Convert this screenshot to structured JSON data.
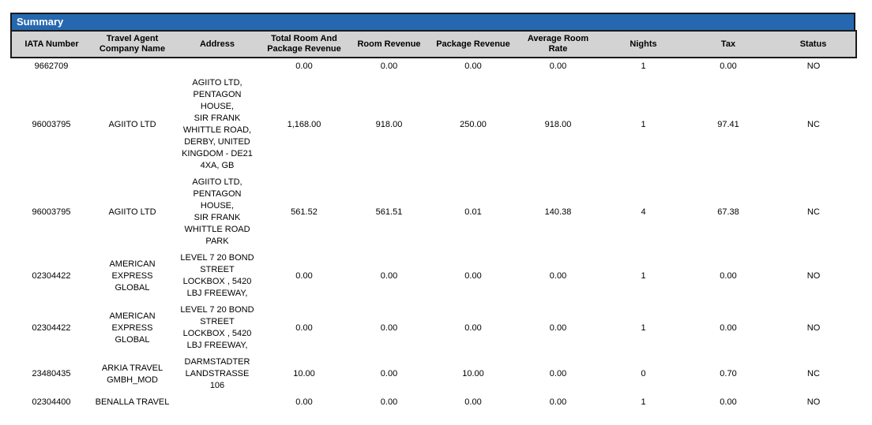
{
  "colors": {
    "summary_bar_bg": "#2668b0",
    "summary_bar_text": "#ffffff",
    "header_bg": "#d3d3d3",
    "border": "#1a1a1a"
  },
  "report": {
    "title": "Summary"
  },
  "table": {
    "columns": [
      {
        "id": "iata",
        "label": "IATA Number"
      },
      {
        "id": "company",
        "label": "Travel Agent\nCompany Name"
      },
      {
        "id": "address",
        "label": "Address"
      },
      {
        "id": "total",
        "label": "Total Room And\nPackage Revenue"
      },
      {
        "id": "room_revenue",
        "label": "Room Revenue"
      },
      {
        "id": "package_revenue",
        "label": "Package Revenue"
      },
      {
        "id": "avg_room_rate",
        "label": "Average Room\nRate"
      },
      {
        "id": "nights",
        "label": "Nights"
      },
      {
        "id": "tax",
        "label": "Tax"
      },
      {
        "id": "status",
        "label": "Status"
      }
    ],
    "rows": [
      {
        "iata": "9662709",
        "company": "",
        "address": "",
        "total": "0.00",
        "room_revenue": "0.00",
        "package_revenue": "0.00",
        "avg_room_rate": "0.00",
        "nights": "1",
        "tax": "0.00",
        "status": "NO"
      },
      {
        "iata": "96003795",
        "company": "AGIITO LTD",
        "address": "AGIITO LTD,\nPENTAGON\nHOUSE,\nSIR FRANK\nWHITTLE ROAD,\nDERBY, UNITED\nKINGDOM - DE21\n4XA, GB",
        "total": "1,168.00",
        "room_revenue": "918.00",
        "package_revenue": "250.00",
        "avg_room_rate": "918.00",
        "nights": "1",
        "tax": "97.41",
        "status": "NC"
      },
      {
        "iata": "96003795",
        "company": "AGIITO LTD",
        "address": "AGIITO LTD,\nPENTAGON\nHOUSE,\nSIR FRANK\nWHITTLE ROAD\nPARK",
        "total": "561.52",
        "room_revenue": "561.51",
        "package_revenue": "0.01",
        "avg_room_rate": "140.38",
        "nights": "4",
        "tax": "67.38",
        "status": "NC"
      },
      {
        "iata": "02304422",
        "company": "AMERICAN\nEXPRESS GLOBAL",
        "address": "LEVEL 7 20 BOND\nSTREET\nLOCKBOX , 5420\nLBJ FREEWAY,",
        "total": "0.00",
        "room_revenue": "0.00",
        "package_revenue": "0.00",
        "avg_room_rate": "0.00",
        "nights": "1",
        "tax": "0.00",
        "status": "NO"
      },
      {
        "iata": "02304422",
        "company": "AMERICAN\nEXPRESS GLOBAL",
        "address": "LEVEL 7 20 BOND\nSTREET\nLOCKBOX , 5420\nLBJ FREEWAY,",
        "total": "0.00",
        "room_revenue": "0.00",
        "package_revenue": "0.00",
        "avg_room_rate": "0.00",
        "nights": "1",
        "tax": "0.00",
        "status": "NO"
      },
      {
        "iata": "23480435",
        "company": "ARKIA TRAVEL\nGMBH_MOD",
        "address": "DARMSTADTER\nLANDSTRASSE\n106",
        "total": "10.00",
        "room_revenue": "0.00",
        "package_revenue": "10.00",
        "avg_room_rate": "0.00",
        "nights": "0",
        "tax": "0.70",
        "status": "NC"
      },
      {
        "iata": "02304400",
        "company": "BENALLA TRAVEL",
        "address": "",
        "total": "0.00",
        "room_revenue": "0.00",
        "package_revenue": "0.00",
        "avg_room_rate": "0.00",
        "nights": "1",
        "tax": "0.00",
        "status": "NO"
      }
    ]
  }
}
